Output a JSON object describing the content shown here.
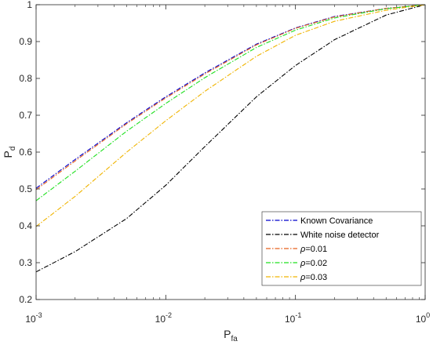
{
  "chart_data": {
    "type": "line",
    "x_scale": "log",
    "xlim": [
      0.001,
      1
    ],
    "ylim": [
      0.2,
      1
    ],
    "grid": false,
    "legend_position": "bottom-right",
    "xlabel": {
      "main": "P",
      "sub": "fa"
    },
    "ylabel": {
      "main": "P",
      "sub": "d"
    },
    "x_ticks": [
      {
        "value": 0.001,
        "base": "10",
        "exp": "-3"
      },
      {
        "value": 0.01,
        "base": "10",
        "exp": "-2"
      },
      {
        "value": 0.1,
        "base": "10",
        "exp": "-1"
      },
      {
        "value": 1,
        "base": "10",
        "exp": "0"
      }
    ],
    "y_ticks": [
      0.2,
      0.3,
      0.4,
      0.5,
      0.6,
      0.7,
      0.8,
      0.9,
      1
    ],
    "y_tick_labels": [
      "0.2",
      "0.3",
      "0.4",
      "0.5",
      "0.6",
      "0.7",
      "0.8",
      "0.9",
      "1"
    ],
    "series": [
      {
        "name": "Known Covariance",
        "color": "#0000cc",
        "dash": "6,2,1.5,2",
        "x": [
          0.001,
          0.002,
          0.005,
          0.01,
          0.02,
          0.05,
          0.1,
          0.2,
          0.5,
          1
        ],
        "y": [
          0.502,
          0.58,
          0.68,
          0.75,
          0.815,
          0.893,
          0.937,
          0.968,
          0.99,
          1.0
        ]
      },
      {
        "name": "White noise detector",
        "color": "#000000",
        "dash": "6,2,1.5,2",
        "x": [
          0.001,
          0.002,
          0.005,
          0.01,
          0.02,
          0.05,
          0.1,
          0.2,
          0.5,
          1
        ],
        "y": [
          0.275,
          0.33,
          0.42,
          0.51,
          0.615,
          0.75,
          0.835,
          0.905,
          0.972,
          1.0
        ]
      },
      {
        "name": "ρ=0.01",
        "label_prefix": "ρ",
        "label_suffix": "=0.01",
        "color": "#e8601c",
        "dash": "6,2,1.5,2",
        "x": [
          0.001,
          0.002,
          0.005,
          0.01,
          0.02,
          0.05,
          0.1,
          0.2,
          0.5,
          1
        ],
        "y": [
          0.498,
          0.576,
          0.677,
          0.747,
          0.812,
          0.891,
          0.936,
          0.967,
          0.99,
          1.0
        ]
      },
      {
        "name": "ρ=0.02",
        "label_prefix": "ρ",
        "label_suffix": "=0.02",
        "color": "#1fe01f",
        "dash": "6,2,1.5,2",
        "x": [
          0.001,
          0.002,
          0.005,
          0.01,
          0.02,
          0.05,
          0.1,
          0.2,
          0.5,
          1
        ],
        "y": [
          0.468,
          0.548,
          0.657,
          0.732,
          0.802,
          0.884,
          0.931,
          0.964,
          0.989,
          1.0
        ]
      },
      {
        "name": "ρ=0.03",
        "label_prefix": "ρ",
        "label_suffix": "=0.03",
        "color": "#f0b400",
        "dash": "6,2,1.5,2",
        "x": [
          0.001,
          0.002,
          0.005,
          0.01,
          0.02,
          0.05,
          0.1,
          0.2,
          0.5,
          1
        ],
        "y": [
          0.398,
          0.48,
          0.6,
          0.685,
          0.765,
          0.86,
          0.917,
          0.955,
          0.985,
          1.0
        ]
      }
    ]
  }
}
